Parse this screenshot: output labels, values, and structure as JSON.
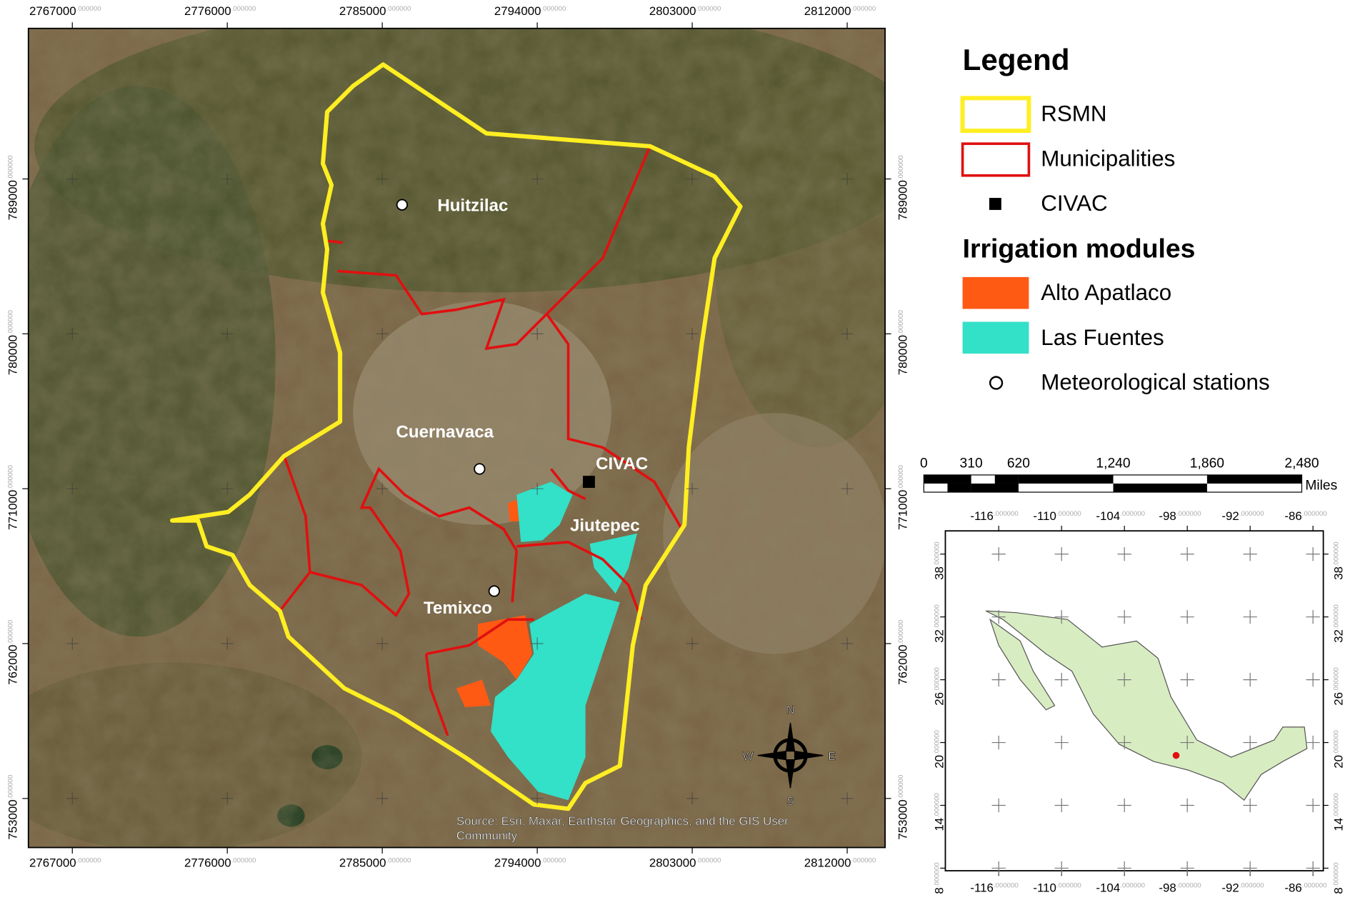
{
  "map": {
    "x_ticks": [
      "2767000",
      "2776000",
      "2785000",
      "2794000",
      "2803000",
      "2812000"
    ],
    "y_ticks": [
      "789000",
      "780000",
      "771000",
      "762000",
      "753000"
    ],
    "tick_decimals": ".000000",
    "places": [
      "Huitzilac",
      "Cuernavaca",
      "CIVAC",
      "Jiutepec",
      "Temixco"
    ],
    "compass": [
      "N",
      "E",
      "S",
      "W"
    ],
    "source": [
      "Source: Esri, Maxar, Earthstar Geographics, and the GIS User",
      "Community"
    ]
  },
  "legend": {
    "title": "Legend",
    "items": [
      "RSMN",
      "Municipalities",
      "CIVAC"
    ],
    "subtitle": "Irrigation modules",
    "modules": [
      "Alto Apatlaco",
      "Las Fuentes",
      "Meteorological stations"
    ]
  },
  "scale_bar": {
    "labels": [
      "0",
      "310",
      "620",
      "1,240",
      "1,860",
      "2,480"
    ],
    "unit": "Miles"
  },
  "inset": {
    "x_ticks": [
      "-116",
      "-110",
      "-104",
      "-98",
      "-92",
      "-86"
    ],
    "y_ticks": [
      "38",
      "32",
      "26",
      "20",
      "14",
      "8"
    ],
    "tick_decimals": ".000000"
  }
}
